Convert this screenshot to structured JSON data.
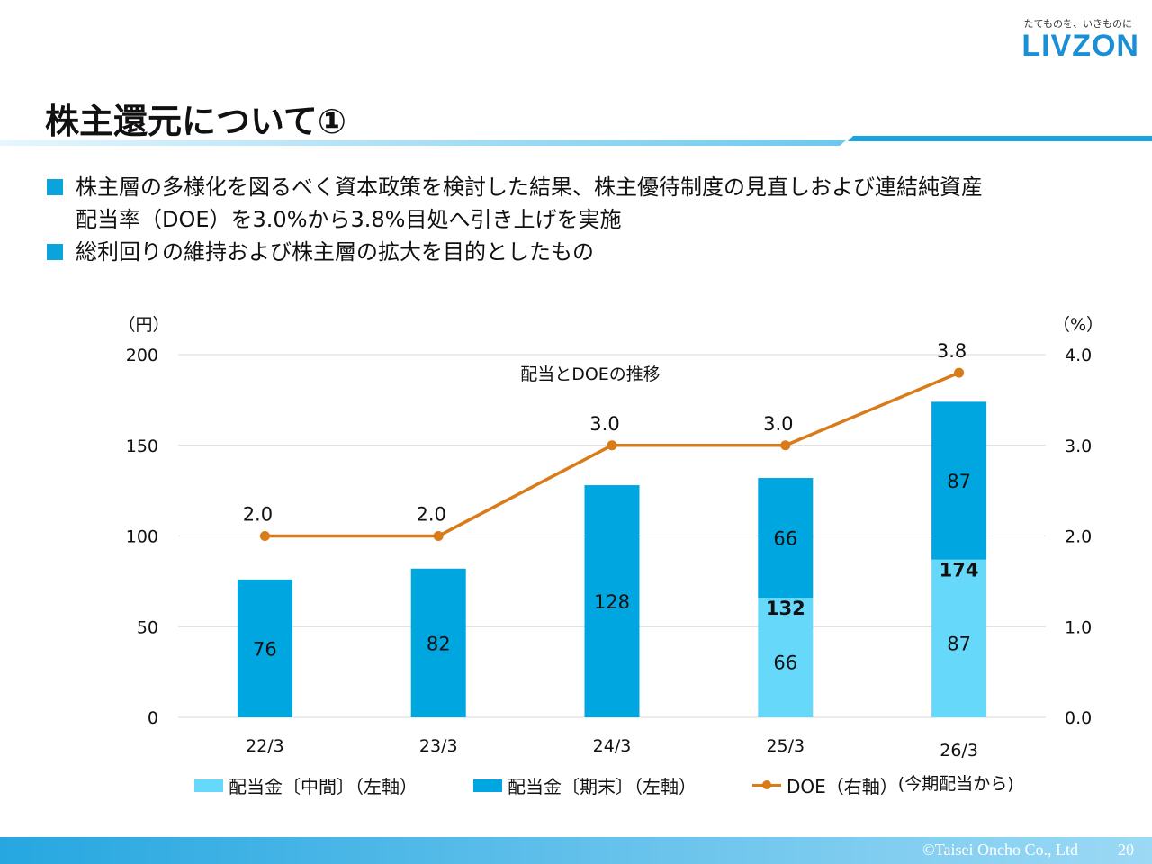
{
  "header": {
    "tagline": "たてものを、いきものに",
    "logo": "LIVZON",
    "title": "株主還元について①"
  },
  "bullets": [
    {
      "lines": [
        "株主層の多様化を図るべく資本政策を検討した結果、株主優待制度の見直しおよび連結純資産",
        "配当率（DOE）を3.0%から3.8%目処へ引き上げを実施"
      ]
    },
    {
      "lines": [
        "総利回りの維持および株主層の拡大を目的としたもの"
      ]
    }
  ],
  "colors": {
    "interim": "#66d9fb",
    "year_end": "#00a6e0",
    "doe": "#d97b18",
    "accent": "#0aa3dc"
  },
  "chart_data": {
    "type": "bar",
    "title": "配当とDOEの推移",
    "categories": [
      "22/3",
      "23/3",
      "24/3",
      "25/3",
      "26/3"
    ],
    "series": [
      {
        "name": "配当金〔中間〕（左軸）",
        "values": [
          0,
          0,
          0,
          66,
          87
        ]
      },
      {
        "name": "配当金〔期末〕（左軸）",
        "values": [
          76,
          82,
          128,
          66,
          87
        ]
      },
      {
        "name": "DOE（右軸）",
        "axis": "right",
        "type": "line",
        "values": [
          2.0,
          2.0,
          3.0,
          3.0,
          3.8
        ]
      }
    ],
    "totals": [
      null,
      null,
      null,
      132,
      174
    ],
    "doe_labels": [
      "2.0",
      "2.0",
      "3.0",
      "3.0",
      "3.8"
    ],
    "ylabel_left": "（円）",
    "ylabel_right": "（%）",
    "ylim_left": [
      0,
      200
    ],
    "ylim_right": [
      0,
      4.0
    ],
    "yticks_left": [
      "0",
      "50",
      "100",
      "150",
      "200"
    ],
    "yticks_right": [
      "0.0",
      "1.0",
      "2.0",
      "3.0",
      "4.0"
    ],
    "legend_note": "(今期配当から)"
  },
  "footer": {
    "copyright": "©Taisei Oncho Co., Ltd",
    "page": "20"
  }
}
